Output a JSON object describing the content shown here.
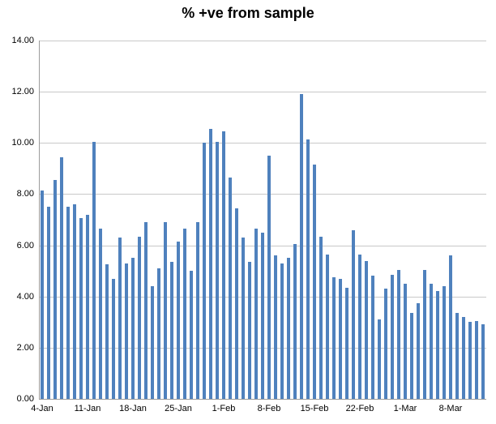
{
  "chart_title": "% +ve from sample",
  "colors": {
    "bar": "#4F81BD",
    "gridline": "#C8C8C8",
    "axis": "#9C9C9C",
    "text": "#000000",
    "background": "#FFFFFF"
  },
  "chart_data": {
    "type": "bar",
    "title": "% +ve from sample",
    "xlabel": "",
    "ylabel": "",
    "ylim": [
      0,
      14
    ],
    "ytick_step": 2,
    "ytick_labels": [
      "0.00",
      "2.00",
      "4.00",
      "6.00",
      "8.00",
      "10.00",
      "12.00",
      "14.00"
    ],
    "grid": true,
    "legend": false,
    "x_tick_labels": [
      "4-Jan",
      "11-Jan",
      "18-Jan",
      "25-Jan",
      "1-Feb",
      "8-Feb",
      "15-Feb",
      "22-Feb",
      "1-Mar",
      "8-Mar"
    ],
    "x_tick_every": 7,
    "x_unit": "day",
    "values": [
      8.15,
      7.5,
      8.55,
      9.45,
      7.5,
      7.6,
      7.05,
      7.2,
      10.05,
      6.65,
      5.25,
      4.7,
      6.3,
      5.3,
      5.5,
      6.35,
      6.9,
      4.4,
      5.1,
      6.9,
      5.35,
      6.15,
      6.65,
      5.0,
      6.9,
      10.0,
      10.55,
      10.05,
      10.45,
      8.65,
      7.45,
      6.3,
      5.35,
      6.65,
      6.5,
      9.5,
      5.6,
      5.3,
      5.5,
      6.05,
      11.9,
      10.15,
      9.15,
      6.35,
      5.65,
      4.75,
      4.7,
      4.35,
      6.6,
      5.65,
      5.4,
      4.8,
      3.1,
      4.3,
      4.85,
      5.05,
      4.5,
      3.35,
      3.75,
      5.05,
      4.5,
      4.2,
      4.4,
      5.6,
      3.35,
      3.2,
      3.0,
      3.05,
      2.9
    ]
  }
}
